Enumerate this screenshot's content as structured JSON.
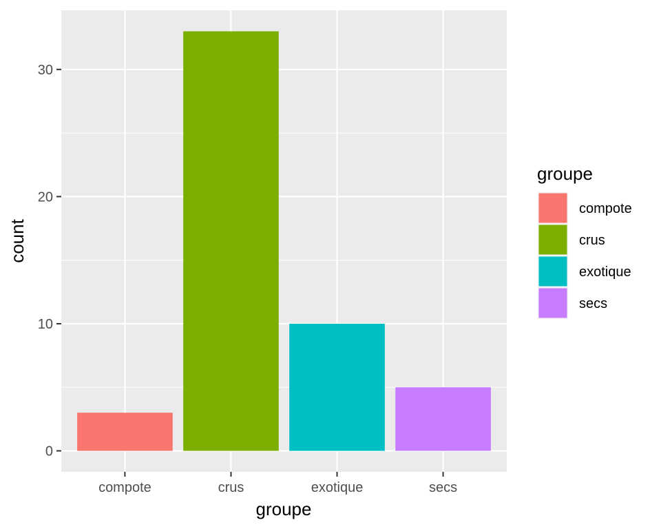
{
  "chart_data": {
    "type": "bar",
    "categories": [
      "compote",
      "crus",
      "exotique",
      "secs"
    ],
    "values": [
      3,
      33,
      10,
      5
    ],
    "colors": [
      "#F8766D",
      "#7CAE00",
      "#00BFC4",
      "#C77CFF"
    ],
    "xlabel": "groupe",
    "ylabel": "count",
    "ylim": [
      -1.65,
      34.65
    ],
    "yticks": [
      0,
      10,
      20,
      30
    ],
    "legend": {
      "title": "groupe",
      "position": "right",
      "entries": [
        "compote",
        "crus",
        "exotique",
        "secs"
      ]
    },
    "grid": true,
    "panel_background": "#EBEBEB",
    "grid_color": "#FFFFFF"
  }
}
